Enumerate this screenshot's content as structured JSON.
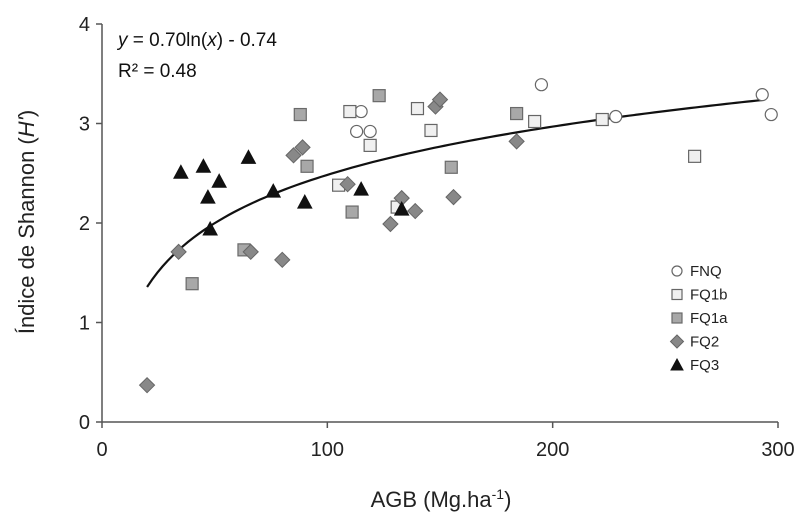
{
  "chart_data": {
    "type": "scatter",
    "xlabel": "AGB (Mg.ha",
    "xlabel_sup": "-1",
    "xlabel_end": ")",
    "ylabel": "Índice de Shannon (",
    "ylabel_italic": "H'",
    "ylabel_end": ")",
    "xlim": [
      0,
      300
    ],
    "ylim": [
      0,
      4
    ],
    "xticks": [
      "0",
      "100",
      "200",
      "300"
    ],
    "yticks": [
      "0",
      "1",
      "2",
      "3",
      "4"
    ],
    "grid": false,
    "legend_position": "right",
    "equation": {
      "y_label": "y",
      "eq_mid": " = 0.70ln(",
      "x_label": "x",
      "eq_end": ") - 0.74",
      "r2": "R² = 0.48"
    },
    "trendline": {
      "a": 0.7,
      "b": -0.74,
      "x_from": 20,
      "x_to": 293
    },
    "series": [
      {
        "name": "FNQ",
        "marker": "circle",
        "fill": "#ffffff",
        "stroke": "#666666",
        "points": [
          [
            113,
            2.92
          ],
          [
            115,
            3.12
          ],
          [
            119,
            2.92
          ],
          [
            195,
            3.39
          ],
          [
            228,
            3.07
          ],
          [
            293,
            3.29
          ],
          [
            297,
            3.09
          ]
        ]
      },
      {
        "name": "FQ1b",
        "marker": "square",
        "fill": "#f0f0f0",
        "stroke": "#666666",
        "points": [
          [
            105,
            2.38
          ],
          [
            110,
            3.12
          ],
          [
            119,
            2.78
          ],
          [
            131,
            2.16
          ],
          [
            140,
            3.15
          ],
          [
            146,
            2.93
          ],
          [
            192,
            3.02
          ],
          [
            222,
            3.04
          ],
          [
            263,
            2.67
          ]
        ]
      },
      {
        "name": "FQ1a",
        "marker": "square",
        "fill": "#a8a8a8",
        "stroke": "#6a6a6a",
        "points": [
          [
            40,
            1.39
          ],
          [
            63,
            1.73
          ],
          [
            88,
            3.09
          ],
          [
            91,
            2.57
          ],
          [
            111,
            2.11
          ],
          [
            123,
            3.28
          ],
          [
            155,
            2.56
          ],
          [
            184,
            3.1
          ]
        ]
      },
      {
        "name": "FQ2",
        "marker": "diamond",
        "fill": "#888888",
        "stroke": "#666666",
        "points": [
          [
            20,
            0.37
          ],
          [
            34,
            1.71
          ],
          [
            66,
            1.71
          ],
          [
            80,
            1.63
          ],
          [
            85,
            2.68
          ],
          [
            89,
            2.76
          ],
          [
            109,
            2.39
          ],
          [
            128,
            1.99
          ],
          [
            133,
            2.25
          ],
          [
            139,
            2.12
          ],
          [
            148,
            3.17
          ],
          [
            150,
            3.24
          ],
          [
            156,
            2.26
          ],
          [
            184,
            2.82
          ]
        ]
      },
      {
        "name": "FQ3",
        "marker": "triangle",
        "fill": "#111111",
        "stroke": "#111111",
        "points": [
          [
            35,
            2.51
          ],
          [
            45,
            2.57
          ],
          [
            47,
            2.26
          ],
          [
            48,
            1.94
          ],
          [
            52,
            2.42
          ],
          [
            65,
            2.66
          ],
          [
            76,
            2.32
          ],
          [
            90,
            2.21
          ],
          [
            115,
            2.34
          ],
          [
            133,
            2.14
          ]
        ]
      }
    ]
  }
}
